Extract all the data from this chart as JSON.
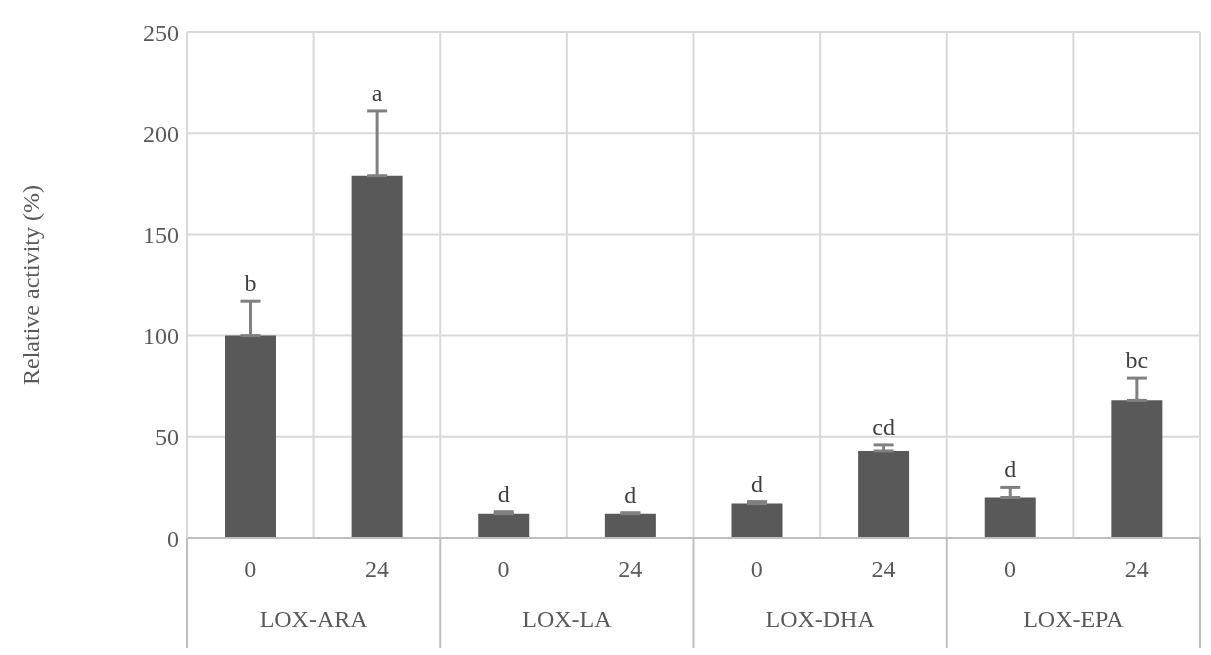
{
  "chart_data": {
    "type": "bar",
    "ylabel": "Relative activity (%)",
    "categories": [
      "0",
      "24",
      "0",
      "24",
      "0",
      "24",
      "0",
      "24"
    ],
    "values": [
      100,
      179,
      12,
      12,
      17,
      43,
      20,
      68
    ],
    "errors": [
      [
        100,
        117
      ],
      [
        179,
        211
      ],
      [
        12,
        13
      ],
      [
        12,
        12.5
      ],
      [
        17,
        18
      ],
      [
        43,
        46
      ],
      [
        20,
        25
      ],
      [
        68,
        79
      ]
    ],
    "value_labels": [
      "b",
      "a",
      "d",
      "d",
      "d",
      "cd",
      "d",
      "bc"
    ],
    "annotations": [
      "LOX-ARA",
      "LOX-LA",
      "LOX-DHA",
      "LOX-EPA"
    ],
    "color": "#595959",
    "ylim": [
      0,
      250
    ],
    "yticks": [
      0,
      50,
      100,
      150,
      200,
      250
    ],
    "grid": true
  }
}
